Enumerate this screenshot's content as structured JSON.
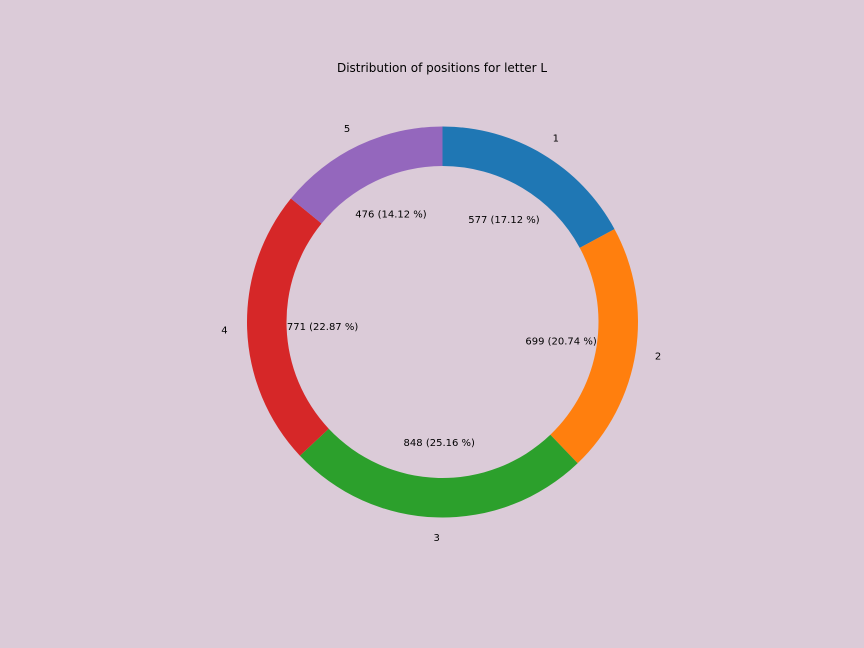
{
  "chart_data": {
    "type": "pie",
    "style": "donut",
    "title": "Distribution of positions for letter L",
    "categories": [
      "1",
      "2",
      "3",
      "4",
      "5"
    ],
    "values": [
      577,
      699,
      848,
      771,
      476
    ],
    "percent_labels": [
      "577 (17.12 %)",
      "699 (20.74 %)",
      "848 (25.16 %)",
      "771 (22.87 %)",
      "476 (14.12 %)"
    ],
    "colors": [
      "#1f77b4",
      "#ff7f0e",
      "#2ca02c",
      "#d62728",
      "#9467bd"
    ],
    "start_angle": "top",
    "direction": "clockwise",
    "legend": "none",
    "background": "#dbcbd8"
  }
}
